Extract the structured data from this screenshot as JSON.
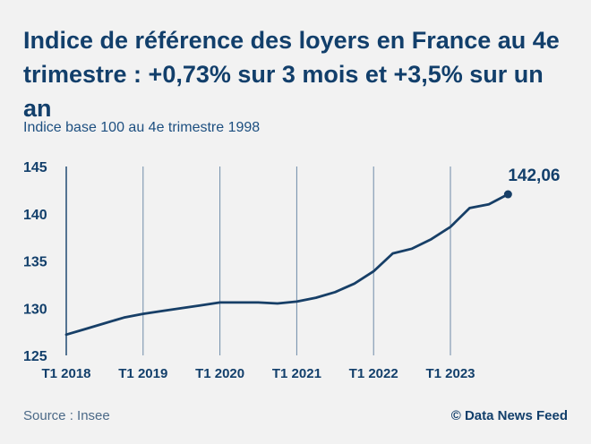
{
  "header": {
    "title": "Indice de référence des loyers en France au 4e trimestre : +0,73% sur 3 mois et +3,5% sur un an",
    "subtitle": "Indice base 100 au 4e trimestre 1998"
  },
  "footer": {
    "source": "Source : Insee",
    "credit": "© Data News Feed"
  },
  "colors": {
    "line": "#173f67",
    "gridline": "#6f8ba8",
    "axis": "#1f4a73",
    "text": "#123f6b"
  },
  "chart_data": {
    "type": "line",
    "title": "Indice de référence des loyers en France au 4e trimestre : +0,73% sur 3 mois et +3,5% sur un an",
    "subtitle": "Indice base 100 au 4e trimestre 1998",
    "ylim": [
      125,
      145
    ],
    "yticks": [
      125,
      130,
      135,
      140,
      145
    ],
    "xlim": [
      0,
      24
    ],
    "xticks": [
      {
        "x": 0,
        "label": "T1 2018"
      },
      {
        "x": 4,
        "label": "T1 2019"
      },
      {
        "x": 8,
        "label": "T1 2020"
      },
      {
        "x": 12,
        "label": "T1 2021"
      },
      {
        "x": 16,
        "label": "T1 2022"
      },
      {
        "x": 20,
        "label": "T1 2023"
      }
    ],
    "grid": "vertical at x ticks",
    "last_value_label": "142,06",
    "series": [
      {
        "x": [
          0,
          1,
          2,
          3,
          4,
          5,
          6,
          7,
          8,
          9,
          10,
          11,
          12,
          13,
          14,
          15,
          16,
          17,
          18,
          19,
          20,
          21,
          22,
          23
        ],
        "values": [
          127.2,
          127.8,
          128.4,
          129.0,
          129.4,
          129.7,
          130.0,
          130.3,
          130.6,
          130.6,
          130.6,
          130.5,
          130.7,
          131.1,
          131.7,
          132.6,
          133.9,
          135.8,
          136.3,
          137.3,
          138.6,
          140.6,
          141.0,
          142.06
        ]
      }
    ]
  }
}
